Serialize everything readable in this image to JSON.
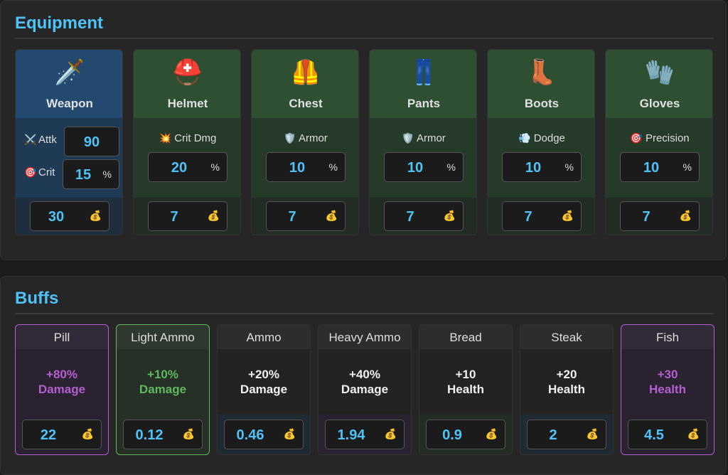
{
  "equipment": {
    "title": "Equipment",
    "cost_icon": "💰",
    "slots": [
      {
        "name": "Weapon",
        "icon": "🗡️",
        "color": "#234a6e",
        "stats": [
          {
            "icon": "⚔️",
            "label": "Attk",
            "value": 90
          },
          {
            "icon": "🎯",
            "label": "Crit",
            "value": 15,
            "unit": "%"
          }
        ],
        "cost": 30
      },
      {
        "name": "Helmet",
        "icon": "⛑️",
        "color": "#2f4f33",
        "stats": [
          {
            "icon": "💥",
            "label": "Crit Dmg",
            "value": 20,
            "unit": "%"
          }
        ],
        "cost": 7
      },
      {
        "name": "Chest",
        "icon": "🦺",
        "color": "#2f4f33",
        "stats": [
          {
            "icon": "🛡️",
            "label": "Armor",
            "value": 10,
            "unit": "%"
          }
        ],
        "cost": 7
      },
      {
        "name": "Pants",
        "icon": "👖",
        "color": "#2f4f33",
        "stats": [
          {
            "icon": "🛡️",
            "label": "Armor",
            "value": 10,
            "unit": "%"
          }
        ],
        "cost": 7
      },
      {
        "name": "Boots",
        "icon": "👢",
        "color": "#2f4f33",
        "stats": [
          {
            "icon": "💨",
            "label": "Dodge",
            "value": 10,
            "unit": "%"
          }
        ],
        "cost": 7
      },
      {
        "name": "Gloves",
        "icon": "🧤",
        "color": "#2f4f33",
        "stats": [
          {
            "icon": "🎯",
            "label": "Precision",
            "value": 10,
            "unit": "%"
          }
        ],
        "cost": 7
      }
    ]
  },
  "buffs": {
    "title": "Buffs",
    "cost_icon": "💰",
    "items": [
      {
        "name": "Pill",
        "effect": "+80%",
        "stat": "Damage",
        "color": "#b45fd0",
        "cost": 22
      },
      {
        "name": "Light Ammo",
        "effect": "+10%",
        "stat": "Damage",
        "color": "#5fb85f",
        "cost": 0.12
      },
      {
        "name": "Ammo",
        "effect": "+20%",
        "stat": "Damage",
        "footer": "#1f2a33",
        "cost": 0.46
      },
      {
        "name": "Heavy Ammo",
        "effect": "+40%",
        "stat": "Damage",
        "footer": "#2a2230",
        "cost": 1.94
      },
      {
        "name": "Bread",
        "effect": "+10",
        "stat": "Health",
        "footer": "#232d23",
        "cost": 0.9
      },
      {
        "name": "Steak",
        "effect": "+20",
        "stat": "Health",
        "footer": "#1f2a33",
        "cost": 2
      },
      {
        "name": "Fish",
        "effect": "+30",
        "stat": "Health",
        "color": "#b45fd0",
        "cost": 4.5
      }
    ]
  }
}
